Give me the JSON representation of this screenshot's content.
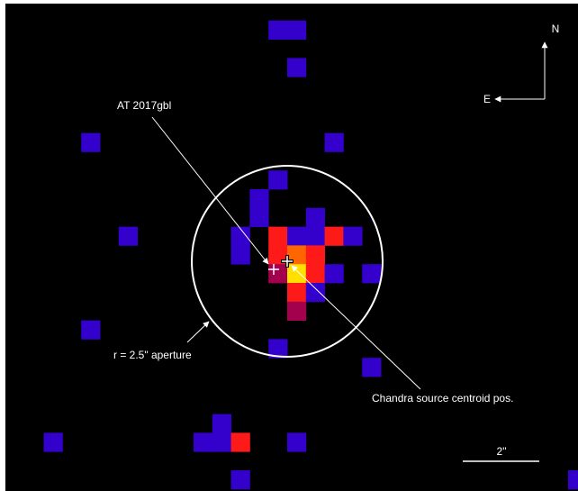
{
  "labels": {
    "source_name": "AT 2017gbl",
    "aperture": "r = 2.5\" aperture",
    "centroid": "Chandra source centroid pos.",
    "north": "N",
    "east": "E",
    "scale": "2\""
  },
  "colors": {
    "background": "#000000",
    "faint_pixel": "#3300cc",
    "dim_pixel": "#a3004e",
    "medium_pixel": "#ff1a1a",
    "bright_pixel": "#ff6600",
    "peak_pixel": "#ffe000",
    "overlay": "#ffffff"
  },
  "pixels": [
    {
      "col": 14,
      "row": 1,
      "level": "faint"
    },
    {
      "col": 15,
      "row": 1,
      "level": "faint"
    },
    {
      "col": 15,
      "row": 3,
      "level": "faint"
    },
    {
      "col": 4,
      "row": 7,
      "level": "faint"
    },
    {
      "col": 17,
      "row": 7,
      "level": "faint"
    },
    {
      "col": 14,
      "row": 9,
      "level": "faint"
    },
    {
      "col": 13,
      "row": 10,
      "level": "faint"
    },
    {
      "col": 13,
      "row": 11,
      "level": "faint"
    },
    {
      "col": 16,
      "row": 11,
      "level": "faint"
    },
    {
      "col": 6,
      "row": 12,
      "level": "faint"
    },
    {
      "col": 12,
      "row": 12,
      "level": "faint"
    },
    {
      "col": 14,
      "row": 12,
      "level": "medium"
    },
    {
      "col": 15,
      "row": 12,
      "level": "faint"
    },
    {
      "col": 16,
      "row": 12,
      "level": "faint"
    },
    {
      "col": 17,
      "row": 12,
      "level": "medium"
    },
    {
      "col": 18,
      "row": 12,
      "level": "faint"
    },
    {
      "col": 12,
      "row": 13,
      "level": "faint"
    },
    {
      "col": 14,
      "row": 13,
      "level": "medium"
    },
    {
      "col": 15,
      "row": 13,
      "level": "bright"
    },
    {
      "col": 16,
      "row": 13,
      "level": "medium"
    },
    {
      "col": 14,
      "row": 14,
      "level": "dim"
    },
    {
      "col": 15,
      "row": 14,
      "level": "peak"
    },
    {
      "col": 16,
      "row": 14,
      "level": "medium"
    },
    {
      "col": 17,
      "row": 14,
      "level": "faint"
    },
    {
      "col": 19,
      "row": 14,
      "level": "faint"
    },
    {
      "col": 15,
      "row": 15,
      "level": "medium"
    },
    {
      "col": 16,
      "row": 15,
      "level": "faint"
    },
    {
      "col": 15,
      "row": 16,
      "level": "dim"
    },
    {
      "col": 4,
      "row": 17,
      "level": "faint"
    },
    {
      "col": 14,
      "row": 18,
      "level": "faint"
    },
    {
      "col": 19,
      "row": 19,
      "level": "faint"
    },
    {
      "col": 11,
      "row": 22,
      "level": "faint"
    },
    {
      "col": 2,
      "row": 23,
      "level": "faint"
    },
    {
      "col": 10,
      "row": 23,
      "level": "faint"
    },
    {
      "col": 11,
      "row": 23,
      "level": "faint"
    },
    {
      "col": 12,
      "row": 23,
      "level": "medium"
    },
    {
      "col": 15,
      "row": 23,
      "level": "faint"
    },
    {
      "col": 12,
      "row": 25,
      "level": "faint"
    },
    {
      "col": 30,
      "row": 25,
      "level": "faint"
    }
  ]
}
